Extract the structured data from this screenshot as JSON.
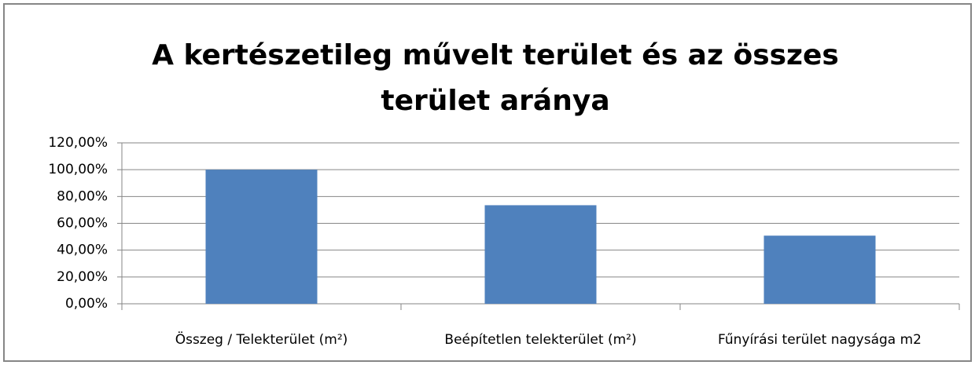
{
  "chart_data": {
    "type": "bar",
    "title": "A kertészetileg művelt terület és az összes terület aránya",
    "categories": [
      "Összeg / Telekterület (m²)",
      "Beépítetlen telekterület (m²)",
      "Fűnyírási terület nagysága m2"
    ],
    "values": [
      100,
      73.5,
      50.8
    ],
    "color": "#4f81bd",
    "ylim": [
      0,
      120
    ],
    "yticks": [
      {
        "value": 0,
        "label": "0,00%"
      },
      {
        "value": 20,
        "label": "20,00%"
      },
      {
        "value": 40,
        "label": "40,00%"
      },
      {
        "value": 60,
        "label": "60,00%"
      },
      {
        "value": 80,
        "label": "80,00%"
      },
      {
        "value": 100,
        "label": "100,00%"
      },
      {
        "value": 120,
        "label": "120,00%"
      }
    ],
    "grid": true
  }
}
